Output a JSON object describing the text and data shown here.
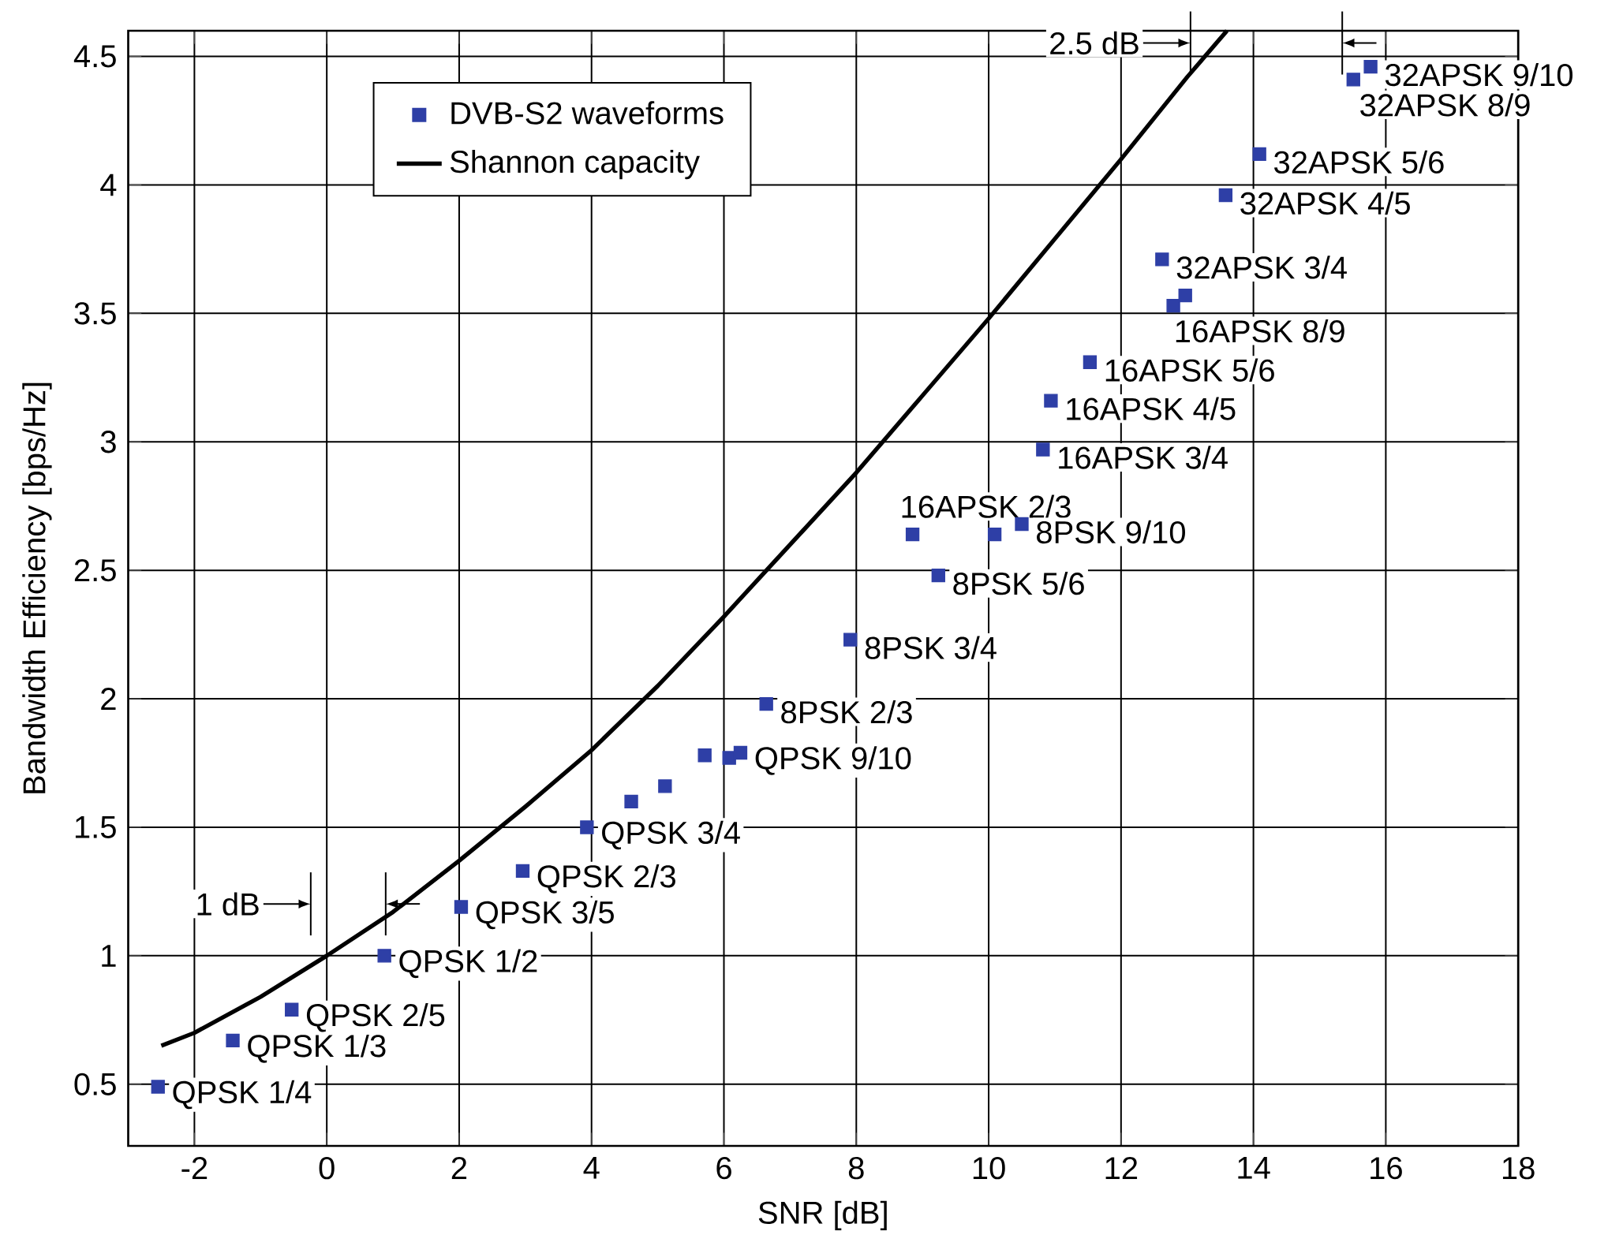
{
  "chart_data": {
    "type": "scatter",
    "xlabel": "SNR [dB]",
    "ylabel": "Bandwidth Efficiency [bps/Hz]",
    "xlim": [
      -3,
      18
    ],
    "ylim": [
      0.26,
      4.6
    ],
    "xticks": [
      -2,
      0,
      2,
      4,
      6,
      8,
      10,
      12,
      14,
      16,
      18
    ],
    "yticks": [
      0.5,
      1,
      1.5,
      2,
      2.5,
      3,
      3.5,
      4,
      4.5
    ],
    "grid": true,
    "legend": "top left",
    "series": [
      {
        "name": "DVB-S2 waveforms",
        "marker": "square",
        "color": "#2e3fa6",
        "x": [
          -2.55,
          -1.42,
          -0.53,
          0.87,
          2.03,
          2.96,
          3.93,
          4.6,
          5.11,
          5.71,
          6.08,
          6.25,
          6.64,
          7.91,
          9.24,
          8.85,
          10.09,
          10.5,
          10.82,
          10.94,
          11.53,
          12.79,
          12.97,
          12.62,
          13.58,
          14.09,
          15.51,
          15.77
        ],
        "values": [
          0.49,
          0.67,
          0.79,
          1.0,
          1.19,
          1.33,
          1.5,
          1.6,
          1.66,
          1.78,
          1.77,
          1.79,
          1.98,
          2.23,
          2.48,
          2.64,
          2.64,
          2.68,
          2.97,
          3.16,
          3.31,
          3.53,
          3.57,
          3.71,
          3.96,
          4.12,
          4.41,
          4.46
        ],
        "value_labels": [
          "QPSK 1/4",
          "QPSK 1/3",
          "QPSK 2/5",
          "QPSK 1/2",
          "QPSK 3/5",
          "QPSK 2/3",
          "QPSK 3/4",
          null,
          null,
          null,
          null,
          "QPSK 9/10",
          "8PSK 2/3",
          "8PSK 3/4",
          "8PSK 5/6",
          "16APSK 2/3",
          null,
          "8PSK 9/10",
          "16APSK 3/4",
          "16APSK 4/5",
          "16APSK 5/6",
          "16APSK 8/9",
          null,
          "32APSK 3/4",
          "32APSK 4/5",
          "32APSK 5/6",
          "32APSK 8/9",
          "32APSK 9/10"
        ]
      },
      {
        "name": "Shannon capacity",
        "type": "line",
        "color": "#000000",
        "line_style": "solid",
        "x": [
          -2.5,
          -2,
          -1,
          0,
          1,
          2,
          3,
          4,
          5,
          6,
          7,
          8,
          9,
          10,
          11,
          12,
          13,
          13.6
        ],
        "values": [
          0.65,
          0.7,
          0.84,
          1.0,
          1.17,
          1.37,
          1.58,
          1.8,
          2.05,
          2.32,
          2.6,
          2.88,
          3.18,
          3.48,
          3.79,
          4.1,
          4.42,
          4.6
        ]
      }
    ],
    "annotations": [
      "1 dB",
      "2.5 dB"
    ]
  }
}
